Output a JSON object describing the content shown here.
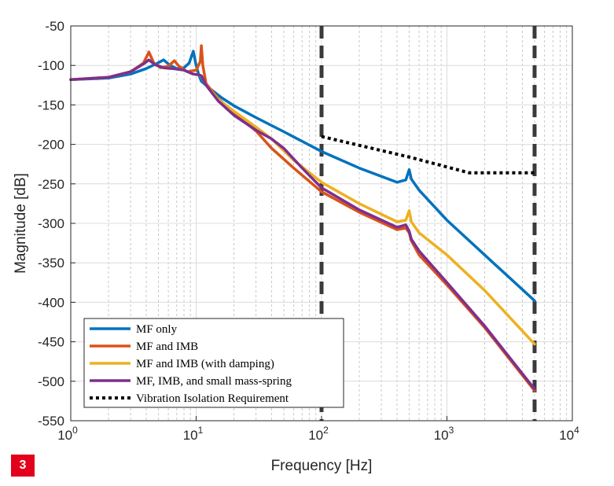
{
  "figure_badge": "3",
  "chart_data": {
    "type": "line",
    "xlabel": "Frequency [Hz]",
    "ylabel": "Magnitude [dB]",
    "xscale": "log",
    "xlim": [
      1,
      10000
    ],
    "ylim": [
      -550,
      -50
    ],
    "grid": true,
    "legend_position": "bottom-left",
    "xticks": [
      {
        "base": "10",
        "exp": "0"
      },
      {
        "base": "10",
        "exp": "1"
      },
      {
        "base": "10",
        "exp": "2"
      },
      {
        "base": "10",
        "exp": "3"
      },
      {
        "base": "10",
        "exp": "4"
      }
    ],
    "yticks": [
      "-50",
      "-100",
      "-150",
      "-200",
      "-250",
      "-300",
      "-350",
      "-400",
      "-450",
      "-500",
      "-550"
    ],
    "vertical_lines": [
      100,
      5000
    ],
    "series": [
      {
        "name": "MF only",
        "color": "#0072BD",
        "style": "solid",
        "x": [
          1,
          2,
          3,
          4,
          4.8,
          5.5,
          6.2,
          7,
          8,
          8.8,
          9.5,
          10,
          10.5,
          11,
          13,
          16,
          20,
          30,
          50,
          100,
          200,
          400,
          470,
          500,
          520,
          600,
          1000,
          2000,
          5000
        ],
        "y": [
          -118,
          -116,
          -111,
          -104,
          -98,
          -93,
          -100,
          -104,
          -103,
          -97,
          -82,
          -100,
          -112,
          -120,
          -130,
          -141,
          -151,
          -166,
          -184,
          -209,
          -230,
          -248,
          -245,
          -232,
          -244,
          -258,
          -296,
          -340,
          -398
        ]
      },
      {
        "name": "MF and IMB",
        "color": "#D95319",
        "style": "solid",
        "x": [
          1,
          2,
          3,
          3.8,
          4.2,
          4.6,
          5.2,
          6,
          6.7,
          7.3,
          8.5,
          10,
          10.8,
          11,
          11.3,
          12,
          15,
          20,
          30,
          40,
          60,
          100,
          200,
          400,
          470,
          500,
          520,
          600,
          1000,
          2000,
          5000
        ],
        "y": [
          -118,
          -115,
          -108,
          -97,
          -83,
          -97,
          -103,
          -101,
          -94,
          -101,
          -108,
          -106,
          -95,
          -75,
          -100,
          -123,
          -142,
          -160,
          -183,
          -205,
          -230,
          -260,
          -286,
          -308,
          -306,
          -312,
          -322,
          -340,
          -378,
          -432,
          -512
        ]
      },
      {
        "name": "MF and IMB (with damping)",
        "color": "#EDB120",
        "style": "solid",
        "x": [
          1,
          2,
          3,
          3.8,
          4.2,
          4.7,
          5.5,
          6.5,
          8,
          9.5,
          10.5,
          11,
          12,
          15,
          20,
          30,
          40,
          60,
          100,
          200,
          400,
          470,
          500,
          520,
          600,
          1000,
          2000,
          5000
        ],
        "y": [
          -118,
          -115,
          -108,
          -98,
          -93,
          -99,
          -103,
          -104,
          -106,
          -111,
          -112,
          -114,
          -125,
          -143,
          -158,
          -178,
          -193,
          -220,
          -248,
          -275,
          -298,
          -296,
          -284,
          -298,
          -312,
          -340,
          -385,
          -453
        ]
      },
      {
        "name": "MF, IMB, and small mass-spring",
        "color": "#7E2F8E",
        "style": "solid",
        "x": [
          1,
          2,
          3,
          3.8,
          4.2,
          4.7,
          5.5,
          6.5,
          8,
          9.5,
          10.5,
          11,
          12,
          15,
          20,
          30,
          40,
          50,
          70,
          100,
          200,
          400,
          470,
          500,
          520,
          600,
          1000,
          2000,
          5000
        ],
        "y": [
          -118,
          -115,
          -108,
          -98,
          -93,
          -99,
          -103,
          -104,
          -106,
          -111,
          -112,
          -113,
          -125,
          -145,
          -163,
          -182,
          -193,
          -205,
          -230,
          -255,
          -283,
          -305,
          -302,
          -310,
          -320,
          -335,
          -375,
          -430,
          -510
        ]
      },
      {
        "name": "Vibration Isolation Requirement",
        "color": "#000000",
        "style": "dotted",
        "x": [
          100,
          500,
          1500,
          5000
        ],
        "y": [
          -190,
          -216,
          -236,
          -236
        ]
      }
    ]
  }
}
